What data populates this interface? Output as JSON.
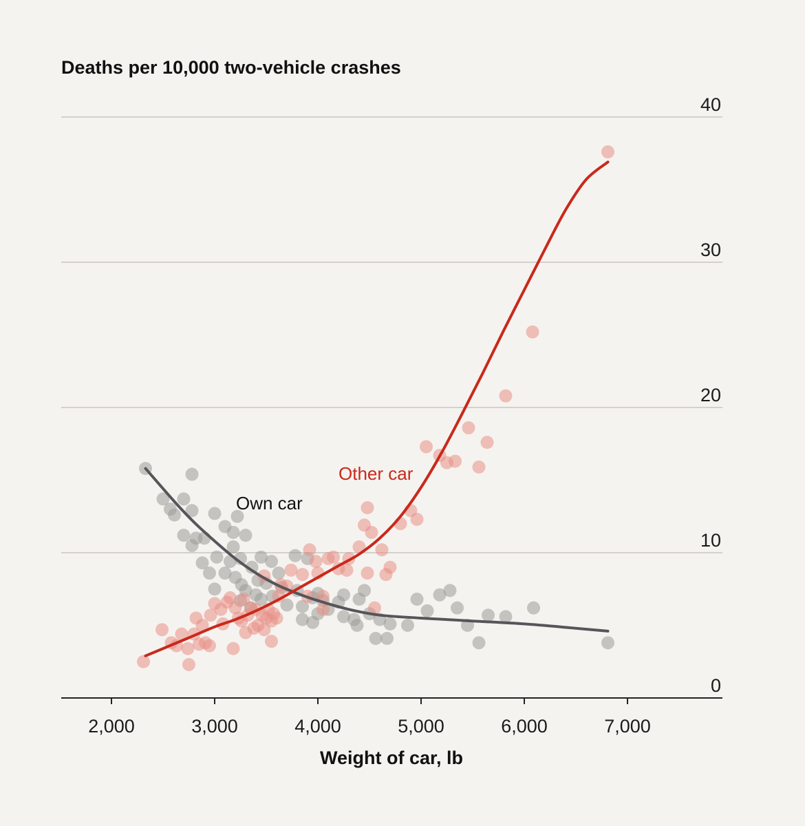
{
  "chart_data": {
    "type": "scatter",
    "title": "Deaths per 10,000 two-vehicle crashes",
    "xlabel": "Weight of car, lb",
    "ylabel": "",
    "xlim": [
      1500,
      7900
    ],
    "ylim": [
      0,
      40
    ],
    "x_ticks": [
      2000,
      3000,
      4000,
      5000,
      6000,
      7000
    ],
    "x_tick_labels": [
      "2,000",
      "3,000",
      "4,000",
      "5,000",
      "6,000",
      "7,000"
    ],
    "y_ticks": [
      0,
      10,
      20,
      30,
      40
    ],
    "y_tick_labels": [
      "0",
      "10",
      "20",
      "30",
      "40"
    ],
    "grid": "horizontal",
    "series": [
      {
        "name": "Own car",
        "color": "#9a9a97",
        "line_color": "#55555a",
        "points": [
          [
            2330,
            15.8
          ],
          [
            2780,
            15.4
          ],
          [
            2500,
            13.7
          ],
          [
            2700,
            13.7
          ],
          [
            2610,
            12.6
          ],
          [
            2570,
            13.0
          ],
          [
            2780,
            12.9
          ],
          [
            3000,
            12.7
          ],
          [
            3220,
            12.5
          ],
          [
            3100,
            11.8
          ],
          [
            3180,
            11.4
          ],
          [
            3300,
            11.2
          ],
          [
            2700,
            11.2
          ],
          [
            2820,
            11.0
          ],
          [
            2900,
            11.0
          ],
          [
            2780,
            10.5
          ],
          [
            3020,
            9.7
          ],
          [
            3180,
            10.4
          ],
          [
            2880,
            9.3
          ],
          [
            3150,
            9.4
          ],
          [
            3250,
            9.6
          ],
          [
            3450,
            9.7
          ],
          [
            3550,
            9.4
          ],
          [
            2950,
            8.6
          ],
          [
            3100,
            8.6
          ],
          [
            3200,
            8.3
          ],
          [
            3360,
            9.0
          ],
          [
            3420,
            8.1
          ],
          [
            3500,
            7.9
          ],
          [
            3620,
            8.6
          ],
          [
            3780,
            9.8
          ],
          [
            3900,
            9.6
          ],
          [
            3000,
            7.5
          ],
          [
            3260,
            7.8
          ],
          [
            3300,
            7.4
          ],
          [
            3400,
            7.1
          ],
          [
            3560,
            7.0
          ],
          [
            3650,
            7.6
          ],
          [
            3800,
            7.4
          ],
          [
            3250,
            6.7
          ],
          [
            3350,
            6.2
          ],
          [
            3450,
            6.8
          ],
          [
            3700,
            6.4
          ],
          [
            3850,
            6.3
          ],
          [
            3950,
            6.9
          ],
          [
            4000,
            7.2
          ],
          [
            4050,
            6.7
          ],
          [
            4200,
            6.6
          ],
          [
            4250,
            7.1
          ],
          [
            4400,
            6.8
          ],
          [
            4450,
            7.4
          ],
          [
            3850,
            5.4
          ],
          [
            4000,
            5.8
          ],
          [
            4100,
            6.1
          ],
          [
            4250,
            5.6
          ],
          [
            4350,
            5.4
          ],
          [
            4380,
            5.0
          ],
          [
            4500,
            5.8
          ],
          [
            4600,
            5.4
          ],
          [
            4700,
            5.1
          ],
          [
            4870,
            5.0
          ],
          [
            3950,
            5.2
          ],
          [
            4560,
            4.1
          ],
          [
            4670,
            4.1
          ],
          [
            4960,
            6.8
          ],
          [
            5060,
            6.0
          ],
          [
            5180,
            7.1
          ],
          [
            5280,
            7.4
          ],
          [
            5350,
            6.2
          ],
          [
            5450,
            5.0
          ],
          [
            5560,
            3.8
          ],
          [
            5650,
            5.7
          ],
          [
            5820,
            5.6
          ],
          [
            6090,
            6.2
          ],
          [
            6810,
            3.8
          ]
        ],
        "fit": [
          [
            2330,
            15.8
          ],
          [
            2600,
            13.6
          ],
          [
            2800,
            12.1
          ],
          [
            3000,
            10.8
          ],
          [
            3200,
            9.6
          ],
          [
            3400,
            8.6
          ],
          [
            3600,
            7.8
          ],
          [
            3800,
            7.2
          ],
          [
            4000,
            6.7
          ],
          [
            4300,
            6.1
          ],
          [
            4600,
            5.7
          ],
          [
            5000,
            5.5
          ],
          [
            5500,
            5.3
          ],
          [
            6000,
            5.1
          ],
          [
            6500,
            4.8
          ],
          [
            6810,
            4.6
          ]
        ],
        "label": "Own car"
      },
      {
        "name": "Other car",
        "color": "#e88f86",
        "line_color": "#c8291c",
        "points": [
          [
            2310,
            2.5
          ],
          [
            2490,
            4.7
          ],
          [
            2580,
            3.8
          ],
          [
            2630,
            3.6
          ],
          [
            2680,
            4.4
          ],
          [
            2740,
            3.4
          ],
          [
            2750,
            2.3
          ],
          [
            2800,
            4.4
          ],
          [
            2820,
            5.5
          ],
          [
            2850,
            3.7
          ],
          [
            2880,
            5.0
          ],
          [
            2910,
            3.8
          ],
          [
            2950,
            3.6
          ],
          [
            2960,
            5.7
          ],
          [
            3000,
            6.5
          ],
          [
            3080,
            5.1
          ],
          [
            3060,
            6.1
          ],
          [
            3120,
            6.6
          ],
          [
            3150,
            6.9
          ],
          [
            3200,
            6.2
          ],
          [
            3230,
            5.5
          ],
          [
            3180,
            3.4
          ],
          [
            3260,
            5.3
          ],
          [
            3280,
            6.8
          ],
          [
            3300,
            4.5
          ],
          [
            3320,
            5.7
          ],
          [
            3350,
            6.2
          ],
          [
            3380,
            4.8
          ],
          [
            3400,
            6.1
          ],
          [
            3420,
            5.0
          ],
          [
            3460,
            5.7
          ],
          [
            3480,
            4.7
          ],
          [
            3500,
            5.5
          ],
          [
            3520,
            6.1
          ],
          [
            3550,
            5.3
          ],
          [
            3570,
            5.8
          ],
          [
            3600,
            5.5
          ],
          [
            3620,
            7.0
          ],
          [
            3550,
            3.9
          ],
          [
            3480,
            8.4
          ],
          [
            3640,
            7.8
          ],
          [
            3700,
            7.7
          ],
          [
            3740,
            8.8
          ],
          [
            3850,
            8.5
          ],
          [
            3900,
            7.0
          ],
          [
            3920,
            10.2
          ],
          [
            3980,
            9.4
          ],
          [
            4000,
            8.6
          ],
          [
            4050,
            7.0
          ],
          [
            4100,
            9.6
          ],
          [
            4150,
            9.7
          ],
          [
            4200,
            8.9
          ],
          [
            4280,
            8.8
          ],
          [
            4300,
            9.6
          ],
          [
            4050,
            6.1
          ],
          [
            4400,
            10.4
          ],
          [
            4450,
            11.9
          ],
          [
            4480,
            13.1
          ],
          [
            4520,
            11.4
          ],
          [
            4480,
            8.6
          ],
          [
            4550,
            6.2
          ],
          [
            4620,
            10.2
          ],
          [
            4660,
            8.5
          ],
          [
            4700,
            9.0
          ],
          [
            4800,
            12.0
          ],
          [
            4900,
            12.9
          ],
          [
            4960,
            12.3
          ],
          [
            5050,
            17.3
          ],
          [
            5180,
            16.7
          ],
          [
            5250,
            16.2
          ],
          [
            5330,
            16.3
          ],
          [
            5460,
            18.6
          ],
          [
            5560,
            15.9
          ],
          [
            5640,
            17.6
          ],
          [
            5820,
            20.8
          ],
          [
            6080,
            25.2
          ],
          [
            6810,
            37.6
          ]
        ],
        "fit": [
          [
            2330,
            2.9
          ],
          [
            2600,
            3.7
          ],
          [
            2800,
            4.3
          ],
          [
            3000,
            4.9
          ],
          [
            3200,
            5.4
          ],
          [
            3400,
            6.0
          ],
          [
            3600,
            6.7
          ],
          [
            3800,
            7.5
          ],
          [
            4000,
            8.3
          ],
          [
            4200,
            9.1
          ],
          [
            4400,
            9.9
          ],
          [
            4600,
            11.0
          ],
          [
            4800,
            12.5
          ],
          [
            5000,
            14.5
          ],
          [
            5200,
            16.9
          ],
          [
            5400,
            19.6
          ],
          [
            5600,
            22.4
          ],
          [
            5800,
            25.3
          ],
          [
            6000,
            28.1
          ],
          [
            6200,
            30.9
          ],
          [
            6400,
            33.6
          ],
          [
            6600,
            35.7
          ],
          [
            6810,
            36.9
          ]
        ],
        "label": "Other car"
      }
    ]
  }
}
